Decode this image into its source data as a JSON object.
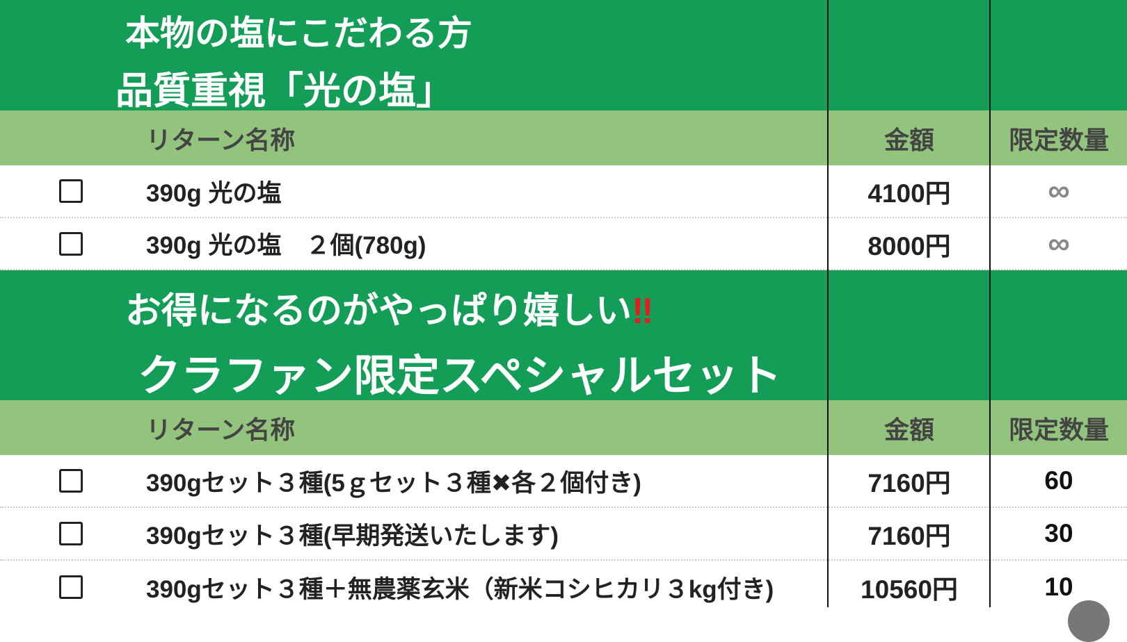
{
  "sections": [
    {
      "title_lines": [
        "本物の塩にこだわる方",
        "品質重視「光の塩」"
      ],
      "title_suffix": "",
      "header": {
        "name": "リターン名称",
        "price": "金額",
        "limit": "限定数量"
      },
      "rows": [
        {
          "name": "390g 光の塩",
          "price": "4100円",
          "limit": "∞"
        },
        {
          "name": "390g 光の塩　２個(780g)",
          "price": "8000円",
          "limit": "∞"
        }
      ]
    },
    {
      "title_lines": [
        "お得になるのがやっぱり嬉しい",
        "クラファン限定スペシャルセット"
      ],
      "title_suffix": "‼",
      "header": {
        "name": "リターン名称",
        "price": "金額",
        "limit": "限定数量"
      },
      "rows": [
        {
          "name": "390gセット３種(5ｇセット３種✖各２個付き)",
          "price": "7160円",
          "limit": "60"
        },
        {
          "name": "390gセット３種(早期発送いたします)",
          "price": "7160円",
          "limit": "30"
        },
        {
          "name": "390gセット３種＋無農薬玄米（新米コシヒカリ３kg付き)",
          "price": "10560円",
          "limit": "10"
        }
      ]
    }
  ],
  "colors": {
    "section_bg": "#139d57",
    "header_bg": "#93c47d",
    "accent": "#e02020"
  }
}
